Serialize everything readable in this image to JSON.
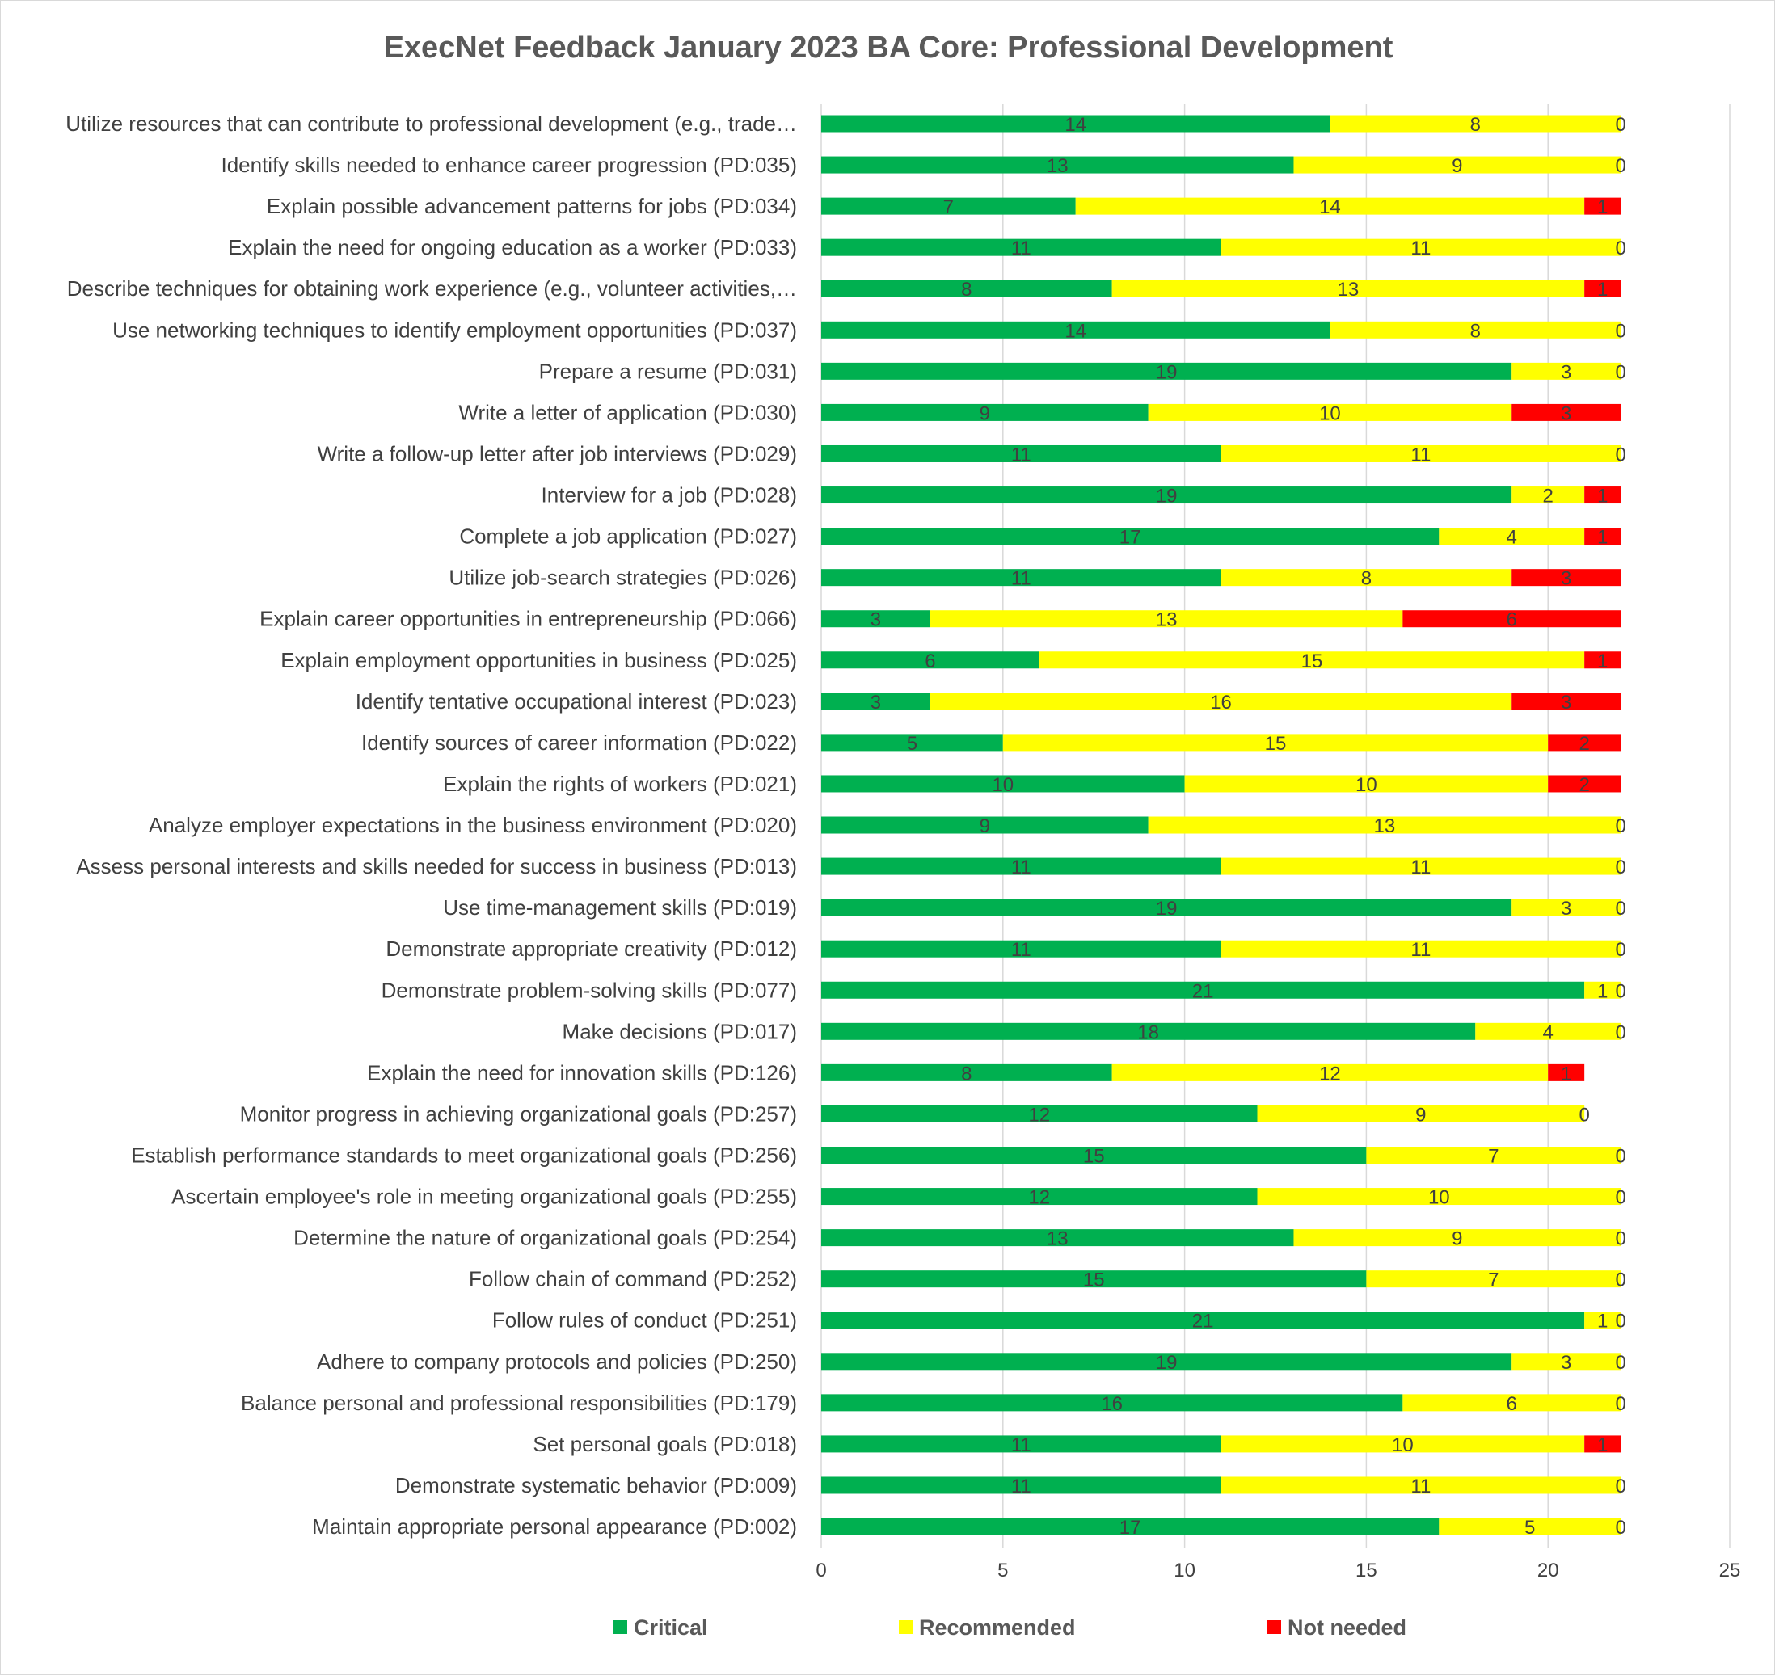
{
  "chart_data": {
    "type": "bar",
    "orientation": "horizontal",
    "stacked": true,
    "title": "ExecNet Feedback January 2023 BA Core: Professional Development",
    "xlabel": "",
    "ylabel": "",
    "xlim": [
      0,
      25
    ],
    "x_ticks": [
      0,
      5,
      10,
      15,
      20,
      25
    ],
    "grid": "vertical",
    "legend_position": "bottom",
    "categories": [
      "Utilize resources that can contribute to professional development (e.g., trade…",
      "Identify skills needed to enhance career progression (PD:035)",
      "Explain possible advancement patterns for jobs (PD:034)",
      "Explain the need for ongoing education as a worker (PD:033)",
      "Describe techniques for obtaining work experience (e.g., volunteer activities,…",
      "Use networking techniques to identify employment opportunities (PD:037)",
      "Prepare a resume (PD:031)",
      "Write a letter of application (PD:030)",
      "Write a follow-up letter after job interviews (PD:029)",
      "Interview for a job (PD:028)",
      "Complete a job application (PD:027)",
      "Utilize job-search strategies (PD:026)",
      "Explain career opportunities in entrepreneurship (PD:066)",
      "Explain employment opportunities in business (PD:025)",
      "Identify tentative occupational interest (PD:023)",
      "Identify sources of career information (PD:022)",
      "Explain the rights of workers (PD:021)",
      "Analyze employer expectations in the business environment (PD:020)",
      "Assess personal interests and skills needed for success in business (PD:013)",
      "Use time-management skills (PD:019)",
      "Demonstrate appropriate creativity (PD:012)",
      "Demonstrate problem-solving skills (PD:077)",
      "Make decisions (PD:017)",
      "Explain the need for innovation skills (PD:126)",
      "Monitor progress in achieving organizational goals (PD:257)",
      "Establish performance standards to meet organizational goals (PD:256)",
      "Ascertain employee's role in meeting organizational goals (PD:255)",
      "Determine the nature of organizational goals (PD:254)",
      "Follow chain of command (PD:252)",
      "Follow rules of conduct (PD:251)",
      "Adhere to company protocols and policies (PD:250)",
      "Balance personal and professional responsibilities (PD:179)",
      "Set personal goals (PD:018)",
      "Demonstrate systematic behavior (PD:009)",
      "Maintain appropriate personal appearance (PD:002)"
    ],
    "series": [
      {
        "name": "Critical",
        "color": "#00b050",
        "values": [
          14,
          13,
          7,
          11,
          8,
          14,
          19,
          9,
          11,
          19,
          17,
          11,
          3,
          6,
          3,
          5,
          10,
          9,
          11,
          19,
          11,
          21,
          18,
          8,
          12,
          15,
          12,
          13,
          15,
          21,
          19,
          16,
          11,
          11,
          17
        ]
      },
      {
        "name": "Recommended",
        "color": "#ffff00",
        "values": [
          8,
          9,
          14,
          11,
          13,
          8,
          3,
          10,
          11,
          2,
          4,
          8,
          13,
          15,
          16,
          15,
          10,
          13,
          11,
          3,
          11,
          1,
          4,
          12,
          9,
          7,
          10,
          9,
          7,
          1,
          3,
          6,
          10,
          11,
          5
        ]
      },
      {
        "name": "Not needed",
        "color": "#ff0000",
        "values": [
          0,
          0,
          1,
          0,
          1,
          0,
          0,
          3,
          0,
          1,
          1,
          3,
          6,
          1,
          3,
          2,
          2,
          0,
          0,
          0,
          0,
          0,
          0,
          1,
          0,
          0,
          0,
          0,
          0,
          0,
          0,
          0,
          1,
          0,
          0
        ]
      }
    ]
  }
}
